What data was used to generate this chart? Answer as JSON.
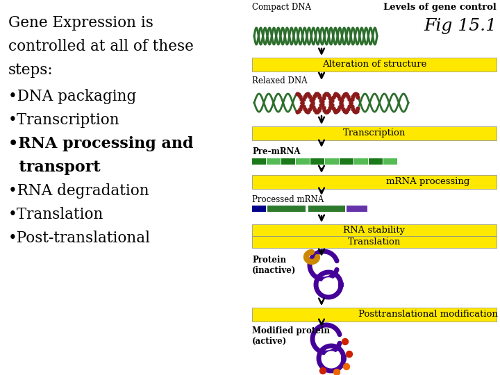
{
  "bg_color": "#ffffff",
  "left_lines": [
    "Gene Expression is",
    "controlled at all of these",
    "steps:"
  ],
  "bullets": [
    {
      "text": "•DNA packaging",
      "bold": false
    },
    {
      "text": "•Transcription",
      "bold": false
    },
    {
      "text": "•RNA processing and",
      "bold": true
    },
    {
      "text": "  transport",
      "bold": true
    },
    {
      "text": "•RNA degradation",
      "bold": false
    },
    {
      "text": "•Translation",
      "bold": false
    },
    {
      "text": "•Post-translational",
      "bold": false
    }
  ],
  "title": "Levels of gene control",
  "fig_label": "Fig 15.1",
  "compact_dna_label": "Compact DNA",
  "relaxed_dna_label": "Relaxed DNA",
  "pre_mrna_label": "Pre-mRNA",
  "processed_mrna_label": "Processed mRNA",
  "protein_label": "Protein\n(inactive)",
  "modified_label": "Modified protein\n(active)",
  "yellow_bars": [
    "Alteration of structure",
    "Transcription",
    "mRNA processing",
    "RNA stability",
    "Translation",
    "Posttranslational modification"
  ],
  "yellow_color": "#FFE800",
  "compact_dna_color": "#2d6e2d",
  "relaxed_dna_green": "#2d6e2d",
  "relaxed_dna_red": "#8b1a1a",
  "pre_mrna_dark": "#1a7a1a",
  "pre_mrna_light": "#55bb55",
  "proc_blue": "#00008b",
  "proc_green": "#2d7a2d",
  "proc_purple": "#6633aa",
  "protein_purple": "#440099",
  "protein_gold": "#cc8800",
  "dot_red": "#cc2200",
  "dot_orange": "#ee6600"
}
